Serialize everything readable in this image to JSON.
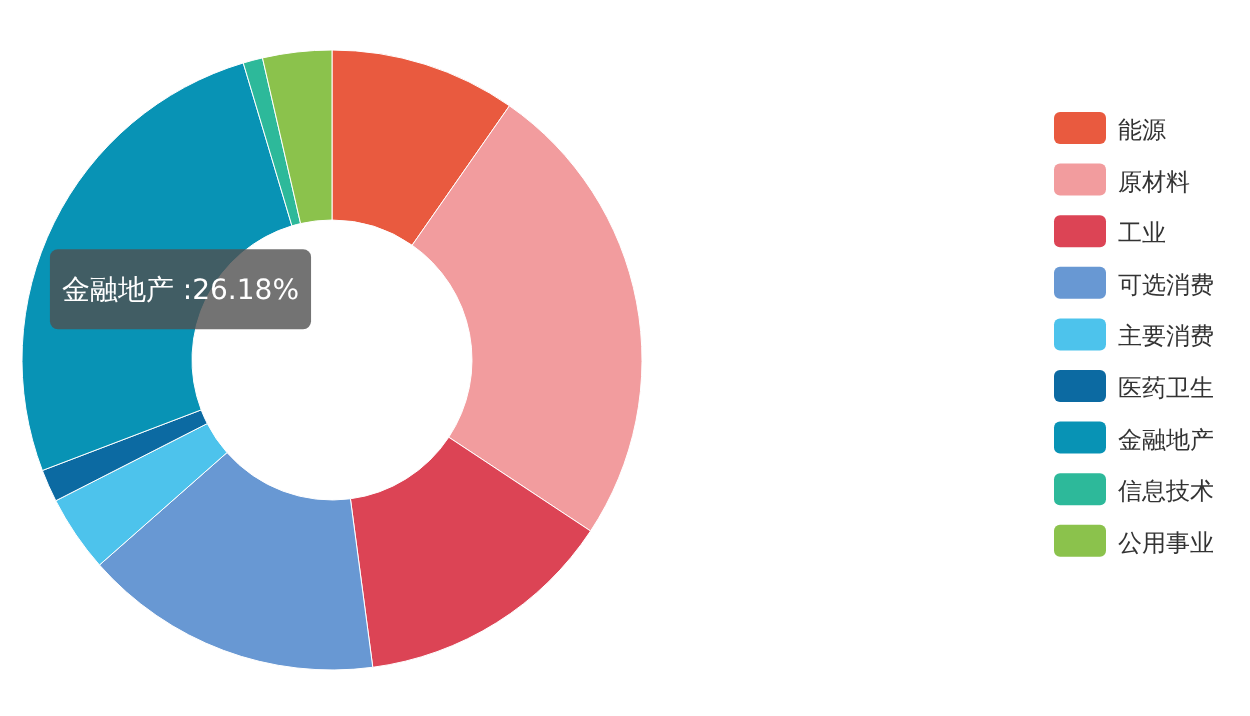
{
  "chart_data": {
    "type": "donut",
    "categories": [
      "能源",
      "原材料",
      "工业",
      "可选消费",
      "主要消费",
      "医药卫生",
      "金融地产",
      "信息技术",
      "公用事业"
    ],
    "values": [
      9.7,
      24.6,
      13.6,
      15.6,
      4.0,
      1.7,
      26.18,
      1.02,
      3.6
    ],
    "colors": [
      "#e95a3f",
      "#f29c9e",
      "#dc4455",
      "#6898d3",
      "#4dc3ec",
      "#0c6aa2",
      "#0893b5",
      "#2db99a",
      "#8bc24c"
    ],
    "value_labels": [
      null,
      null,
      null,
      null,
      null,
      null,
      "金融地产 :26.18%",
      null,
      null
    ],
    "legend": "right"
  }
}
